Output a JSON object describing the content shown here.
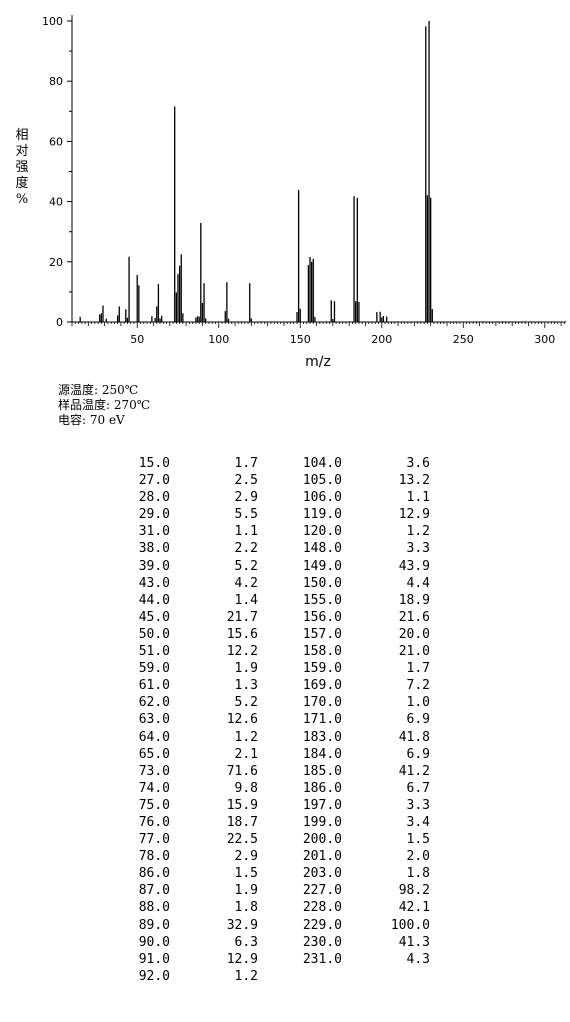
{
  "chart_data": {
    "type": "bar",
    "xlabel": "m/z",
    "ylabel": "相对强度%",
    "xlim": [
      10,
      313
    ],
    "ylim": [
      0,
      100
    ],
    "x_ticks": [
      50,
      100,
      150,
      200,
      250,
      300
    ],
    "y_ticks": [
      0,
      20,
      40,
      60,
      80,
      100
    ],
    "grid": false,
    "peaks": [
      {
        "mz": 15.0,
        "intensity": 1.7
      },
      {
        "mz": 27.0,
        "intensity": 2.5
      },
      {
        "mz": 28.0,
        "intensity": 2.9
      },
      {
        "mz": 29.0,
        "intensity": 5.5
      },
      {
        "mz": 31.0,
        "intensity": 1.1
      },
      {
        "mz": 38.0,
        "intensity": 2.2
      },
      {
        "mz": 39.0,
        "intensity": 5.2
      },
      {
        "mz": 43.0,
        "intensity": 4.2
      },
      {
        "mz": 44.0,
        "intensity": 1.4
      },
      {
        "mz": 45.0,
        "intensity": 21.7
      },
      {
        "mz": 50.0,
        "intensity": 15.6
      },
      {
        "mz": 51.0,
        "intensity": 12.2
      },
      {
        "mz": 59.0,
        "intensity": 1.9
      },
      {
        "mz": 61.0,
        "intensity": 1.3
      },
      {
        "mz": 62.0,
        "intensity": 5.2
      },
      {
        "mz": 63.0,
        "intensity": 12.6
      },
      {
        "mz": 64.0,
        "intensity": 1.2
      },
      {
        "mz": 65.0,
        "intensity": 2.1
      },
      {
        "mz": 73.0,
        "intensity": 71.6
      },
      {
        "mz": 74.0,
        "intensity": 9.8
      },
      {
        "mz": 75.0,
        "intensity": 15.9
      },
      {
        "mz": 76.0,
        "intensity": 18.7
      },
      {
        "mz": 77.0,
        "intensity": 22.5
      },
      {
        "mz": 78.0,
        "intensity": 2.9
      },
      {
        "mz": 86.0,
        "intensity": 1.5
      },
      {
        "mz": 87.0,
        "intensity": 1.9
      },
      {
        "mz": 88.0,
        "intensity": 1.8
      },
      {
        "mz": 89.0,
        "intensity": 32.9
      },
      {
        "mz": 90.0,
        "intensity": 6.3
      },
      {
        "mz": 91.0,
        "intensity": 12.9
      },
      {
        "mz": 92.0,
        "intensity": 1.2
      },
      {
        "mz": 104.0,
        "intensity": 3.6
      },
      {
        "mz": 105.0,
        "intensity": 13.2
      },
      {
        "mz": 106.0,
        "intensity": 1.1
      },
      {
        "mz": 119.0,
        "intensity": 12.9
      },
      {
        "mz": 120.0,
        "intensity": 1.2
      },
      {
        "mz": 148.0,
        "intensity": 3.3
      },
      {
        "mz": 149.0,
        "intensity": 43.9
      },
      {
        "mz": 150.0,
        "intensity": 4.4
      },
      {
        "mz": 155.0,
        "intensity": 18.9
      },
      {
        "mz": 156.0,
        "intensity": 21.6
      },
      {
        "mz": 157.0,
        "intensity": 20.0
      },
      {
        "mz": 158.0,
        "intensity": 21.0
      },
      {
        "mz": 159.0,
        "intensity": 1.7
      },
      {
        "mz": 169.0,
        "intensity": 7.2
      },
      {
        "mz": 170.0,
        "intensity": 1.0
      },
      {
        "mz": 171.0,
        "intensity": 6.9
      },
      {
        "mz": 183.0,
        "intensity": 41.8
      },
      {
        "mz": 184.0,
        "intensity": 6.9
      },
      {
        "mz": 185.0,
        "intensity": 41.2
      },
      {
        "mz": 186.0,
        "intensity": 6.7
      },
      {
        "mz": 197.0,
        "intensity": 3.3
      },
      {
        "mz": 199.0,
        "intensity": 3.4
      },
      {
        "mz": 200.0,
        "intensity": 1.5
      },
      {
        "mz": 201.0,
        "intensity": 2.0
      },
      {
        "mz": 203.0,
        "intensity": 1.8
      },
      {
        "mz": 227.0,
        "intensity": 98.2
      },
      {
        "mz": 228.0,
        "intensity": 42.1
      },
      {
        "mz": 229.0,
        "intensity": 100.0
      },
      {
        "mz": 230.0,
        "intensity": 41.3
      },
      {
        "mz": 231.0,
        "intensity": 4.3
      }
    ]
  },
  "ylabel_chars": [
    "相",
    "对",
    "强",
    "度",
    "%"
  ],
  "conditions": {
    "source_temp": "源温度: 250℃",
    "sample_temp": "样品温度: 270℃",
    "energy": "电容: 70 eV"
  },
  "table": {
    "col_a": [
      [
        "15.0",
        "1.7"
      ],
      [
        "27.0",
        "2.5"
      ],
      [
        "28.0",
        "2.9"
      ],
      [
        "29.0",
        "5.5"
      ],
      [
        "31.0",
        "1.1"
      ],
      [
        "38.0",
        "2.2"
      ],
      [
        "39.0",
        "5.2"
      ],
      [
        "43.0",
        "4.2"
      ],
      [
        "44.0",
        "1.4"
      ],
      [
        "45.0",
        "21.7"
      ],
      [
        "50.0",
        "15.6"
      ],
      [
        "51.0",
        "12.2"
      ],
      [
        "59.0",
        "1.9"
      ],
      [
        "61.0",
        "1.3"
      ],
      [
        "62.0",
        "5.2"
      ],
      [
        "63.0",
        "12.6"
      ],
      [
        "64.0",
        "1.2"
      ],
      [
        "65.0",
        "2.1"
      ],
      [
        "73.0",
        "71.6"
      ],
      [
        "74.0",
        "9.8"
      ],
      [
        "75.0",
        "15.9"
      ],
      [
        "76.0",
        "18.7"
      ],
      [
        "77.0",
        "22.5"
      ],
      [
        "78.0",
        "2.9"
      ],
      [
        "86.0",
        "1.5"
      ],
      [
        "87.0",
        "1.9"
      ],
      [
        "88.0",
        "1.8"
      ],
      [
        "89.0",
        "32.9"
      ],
      [
        "90.0",
        "6.3"
      ],
      [
        "91.0",
        "12.9"
      ],
      [
        "92.0",
        "1.2"
      ]
    ],
    "col_b": [
      [
        "104.0",
        "3.6"
      ],
      [
        "105.0",
        "13.2"
      ],
      [
        "106.0",
        "1.1"
      ],
      [
        "119.0",
        "12.9"
      ],
      [
        "120.0",
        "1.2"
      ],
      [
        "148.0",
        "3.3"
      ],
      [
        "149.0",
        "43.9"
      ],
      [
        "150.0",
        "4.4"
      ],
      [
        "155.0",
        "18.9"
      ],
      [
        "156.0",
        "21.6"
      ],
      [
        "157.0",
        "20.0"
      ],
      [
        "158.0",
        "21.0"
      ],
      [
        "159.0",
        "1.7"
      ],
      [
        "169.0",
        "7.2"
      ],
      [
        "170.0",
        "1.0"
      ],
      [
        "171.0",
        "6.9"
      ],
      [
        "183.0",
        "41.8"
      ],
      [
        "184.0",
        "6.9"
      ],
      [
        "185.0",
        "41.2"
      ],
      [
        "186.0",
        "6.7"
      ],
      [
        "197.0",
        "3.3"
      ],
      [
        "199.0",
        "3.4"
      ],
      [
        "200.0",
        "1.5"
      ],
      [
        "201.0",
        "2.0"
      ],
      [
        "203.0",
        "1.8"
      ],
      [
        "227.0",
        "98.2"
      ],
      [
        "228.0",
        "42.1"
      ],
      [
        "229.0",
        "100.0"
      ],
      [
        "230.0",
        "41.3"
      ],
      [
        "231.0",
        "4.3"
      ]
    ]
  }
}
